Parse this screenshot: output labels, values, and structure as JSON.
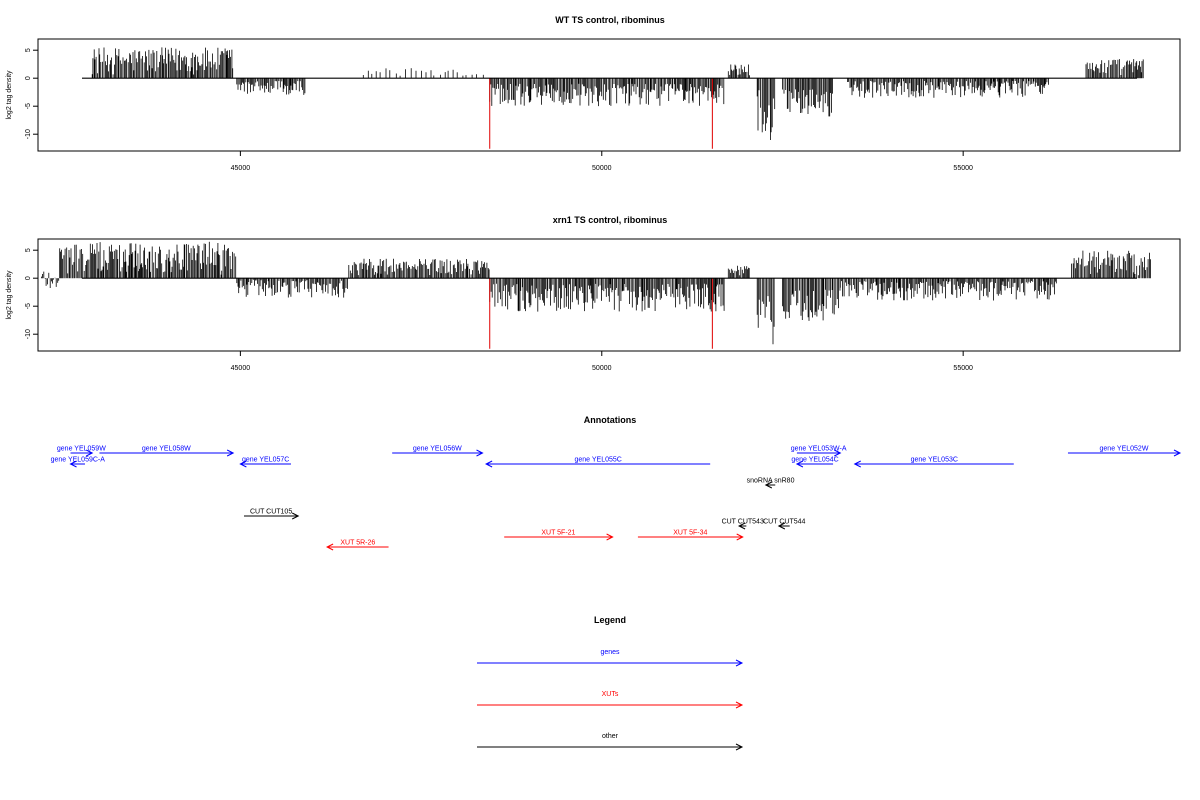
{
  "chart_data": [
    {
      "type": "bar",
      "title": "WT TS control, ribominus",
      "ylabel": "log2 tag density",
      "xlabel": "",
      "xlim": [
        42200,
        58000
      ],
      "ylim": [
        -13,
        7
      ],
      "x_ticks": [
        45000,
        50000,
        55000
      ],
      "y_ticks": [
        5,
        0,
        -5,
        -10
      ],
      "bar_color": "#000000",
      "marker_color": "#e00000",
      "markers": [
        48450,
        51530
      ],
      "segments": [
        {
          "from": 42950,
          "to": 44900,
          "min": 0.5,
          "max": 5.5
        },
        {
          "from": 44950,
          "to": 45900,
          "min": -3,
          "max": -0.5
        },
        {
          "from": 46700,
          "to": 48000,
          "min": 0.3,
          "max": 1.8
        },
        {
          "from": 48000,
          "to": 48400,
          "min": 0.3,
          "max": 1.2
        },
        {
          "from": 48450,
          "to": 51700,
          "min": -5,
          "max": -1
        },
        {
          "from": 51750,
          "to": 52050,
          "min": 0.3,
          "max": 2.5
        },
        {
          "from": 52150,
          "to": 52400,
          "min": -12,
          "max": -2
        },
        {
          "from": 52500,
          "to": 53200,
          "min": -7,
          "max": -2
        },
        {
          "from": 53400,
          "to": 56200,
          "min": -3.5,
          "max": -0.5
        },
        {
          "from": 56700,
          "to": 57500,
          "min": 0.5,
          "max": 3.5
        }
      ]
    },
    {
      "type": "bar",
      "title": "xrn1 TS control, ribominus",
      "ylabel": "log2 tag density",
      "xlabel": "",
      "xlim": [
        42200,
        58000
      ],
      "ylim": [
        -13,
        7
      ],
      "x_ticks": [
        45000,
        50000,
        55000
      ],
      "y_ticks": [
        5,
        0,
        -5,
        -10
      ],
      "bar_color": "#000000",
      "marker_color": "#e00000",
      "markers": [
        48450,
        51530
      ],
      "segments": [
        {
          "from": 42250,
          "to": 42500,
          "min": -2.5,
          "max": 2
        },
        {
          "from": 42500,
          "to": 44950,
          "min": 0.5,
          "max": 6.5
        },
        {
          "from": 44950,
          "to": 46500,
          "min": -3.5,
          "max": -0.3
        },
        {
          "from": 46500,
          "to": 48450,
          "min": 0.5,
          "max": 3.5
        },
        {
          "from": 48450,
          "to": 51700,
          "min": -6,
          "max": -1
        },
        {
          "from": 51750,
          "to": 52050,
          "min": 0.3,
          "max": 2.5
        },
        {
          "from": 52150,
          "to": 52400,
          "min": -12.5,
          "max": -3
        },
        {
          "from": 52500,
          "to": 53300,
          "min": -8,
          "max": -2
        },
        {
          "from": 53300,
          "to": 56300,
          "min": -4,
          "max": -0.5
        },
        {
          "from": 56500,
          "to": 57600,
          "min": 0.5,
          "max": 5
        }
      ]
    }
  ],
  "annotations": {
    "title": "Annotations",
    "genes": [
      {
        "label": "gene YEL059W",
        "start": 42650,
        "end": 42950,
        "row": 0,
        "dir": "right"
      },
      {
        "label": "gene YEL058W",
        "start": 43050,
        "end": 44900,
        "row": 0,
        "dir": "right"
      },
      {
        "label": "gene YEL059C-A",
        "start": 42650,
        "end": 42850,
        "row": 1,
        "dir": "left"
      },
      {
        "label": "gene YEL057C",
        "start": 45000,
        "end": 45700,
        "row": 1,
        "dir": "left"
      },
      {
        "label": "gene YEL056W",
        "start": 47100,
        "end": 48350,
        "row": 0,
        "dir": "right"
      },
      {
        "label": "gene YEL055C",
        "start": 48400,
        "end": 51500,
        "row": 1,
        "dir": "left"
      },
      {
        "label": "gene YEL053W-A",
        "start": 52700,
        "end": 53300,
        "row": 0,
        "dir": "right"
      },
      {
        "label": "gene YEL054C",
        "start": 52700,
        "end": 53200,
        "row": 1,
        "dir": "left"
      },
      {
        "label": "gene YEL053C",
        "start": 53500,
        "end": 55700,
        "row": 1,
        "dir": "left"
      },
      {
        "label": "gene YEL052W",
        "start": 56450,
        "end": 58000,
        "row": 0,
        "dir": "right"
      }
    ],
    "others": [
      {
        "label": "snoRNA snR80",
        "start": 52270,
        "end": 52400,
        "row": 2,
        "dir": "left"
      },
      {
        "label": "CUT CUT105",
        "start": 45050,
        "end": 45800,
        "row": 3,
        "dir": "right"
      },
      {
        "label": "CUT CUT543",
        "start": 51900,
        "end": 52000,
        "row": 4,
        "dir": "left"
      },
      {
        "label": "CUT CUT544",
        "start": 52450,
        "end": 52600,
        "row": 4,
        "dir": "left"
      }
    ],
    "xuts": [
      {
        "label": "XUT 5F-21",
        "start": 48650,
        "end": 50150,
        "row": 5,
        "dir": "right"
      },
      {
        "label": "XUT 5F-34",
        "start": 50500,
        "end": 51950,
        "row": 5,
        "dir": "right"
      },
      {
        "label": "XUT 5R-26",
        "start": 46200,
        "end": 47050,
        "row": 6,
        "dir": "left"
      }
    ]
  },
  "legend": {
    "title": "Legend",
    "items": [
      {
        "label": "genes",
        "color": "#0000ff"
      },
      {
        "label": "XUTs",
        "color": "#ff0000"
      },
      {
        "label": "other",
        "color": "#000000"
      }
    ]
  }
}
